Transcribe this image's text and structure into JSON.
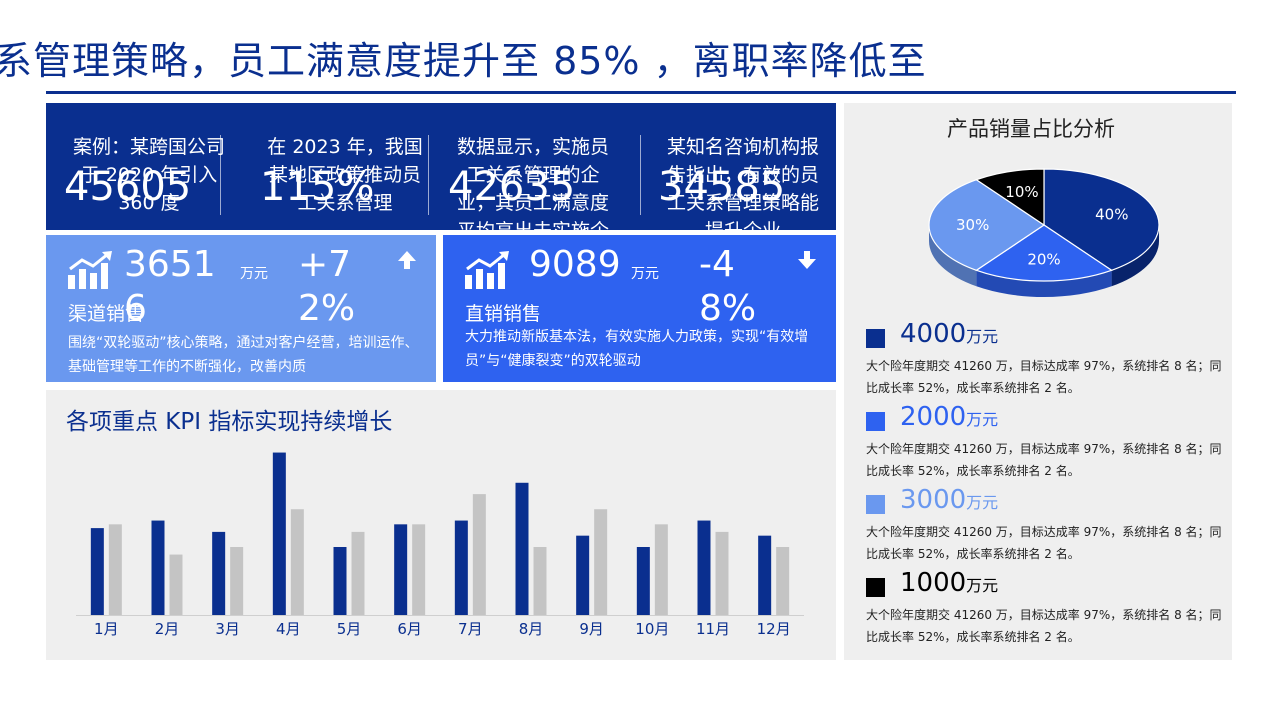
{
  "header": {
    "title": "系管理策略，员工满意度提升至 85% ，离职率降低至"
  },
  "stats": [
    {
      "text": "案例：某跨国公司于 2020 年引入 360 度",
      "value": "45605"
    },
    {
      "text": "在 2023 年，我国某地区政策推动员工关系管理",
      "value": "115%"
    },
    {
      "text": "数据显示，实施员工关系管理的企业，其员工满意度平均高出未实施企业",
      "value": "42635"
    },
    {
      "text": "某知名咨询机构报告指出，有效的员工关系管理策略能提升企业",
      "value": "34585"
    }
  ],
  "cards": {
    "channel": {
      "value": "36516",
      "unit": "万元",
      "rate": "+72%",
      "name": "渠道销售",
      "desc": "围绕“双轮驱动”核心策略，通过对客户经营，培训运作、基础管理等工作的不断强化，改善内质",
      "arrow": "up-arrow-icon"
    },
    "direct": {
      "value": "9089",
      "unit": "万元",
      "rate": "-48%",
      "name": "直销销售",
      "desc": "大力推动新版基本法，有效实施人力政策，实现“有效增员”与“健康裂变”的双轮驱动",
      "arrow": "down-arrow-icon"
    }
  },
  "chart_data": [
    {
      "type": "bar",
      "title": "各项重点 KPI 指标实现持续增长",
      "categories": [
        "1月",
        "2月",
        "3月",
        "4月",
        "5月",
        "6月",
        "7月",
        "8月",
        "9月",
        "10月",
        "11月",
        "12月"
      ],
      "series": [
        {
          "values": [
            23,
            25,
            22,
            43,
            18,
            24,
            25,
            35,
            21,
            18,
            25,
            21
          ],
          "color": "#0a2f8f"
        },
        {
          "values": [
            24,
            16,
            18,
            28,
            22,
            24,
            32,
            18,
            28,
            24,
            22,
            18
          ],
          "color": "#c4c4c4"
        }
      ],
      "ylim": [
        0,
        45
      ],
      "grid": false
    },
    {
      "type": "pie",
      "title": "产品销量占比分析",
      "slices": [
        {
          "label": "40%",
          "value": 40,
          "color": "#0a2f8f"
        },
        {
          "label": "20%",
          "value": 20,
          "color": "#2e62f0"
        },
        {
          "label": "30%",
          "value": 30,
          "color": "#6a98ef"
        },
        {
          "label": "10%",
          "value": 10,
          "color": "#000000"
        }
      ]
    }
  ],
  "legend": [
    {
      "value": "4000",
      "unit": "万元",
      "color": "#0a2f8f",
      "desc": "大个险年度期交 41260 万，目标达成率 97%，系统排名 8 名；同比成长率 52%，成长率系统排名 2 名。"
    },
    {
      "value": "2000",
      "unit": "万元",
      "color": "#2e62f0",
      "desc": "大个险年度期交 41260 万，目标达成率 97%，系统排名 8 名；同比成长率 52%，成长率系统排名 2 名。"
    },
    {
      "value": "3000",
      "unit": "万元",
      "color": "#6a98ef",
      "desc": "大个险年度期交 41260 万，目标达成率 97%，系统排名 8 名；同比成长率 52%，成长率系统排名 2 名。"
    },
    {
      "value": "1000",
      "unit": "万元",
      "color": "#000000",
      "desc": "大个险年度期交 41260 万，目标达成率 97%，系统排名 8 名；同比成长率 52%，成长率系统排名 2 名。"
    }
  ]
}
